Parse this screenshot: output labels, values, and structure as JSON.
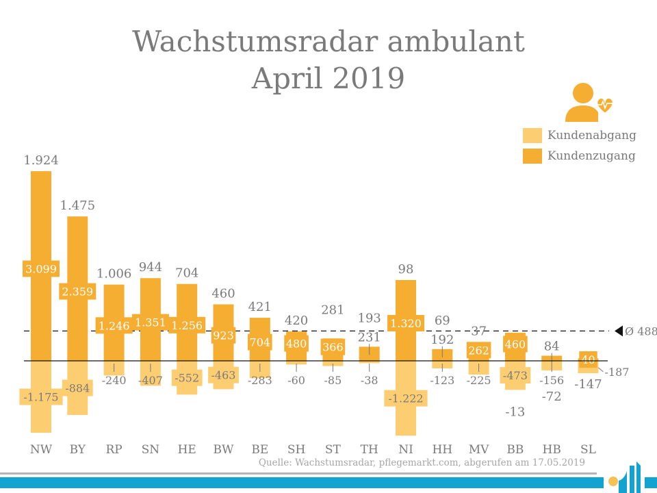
{
  "header": {
    "title_line1": "Wachstumsradar ambulant",
    "title_line2": "April 2019"
  },
  "legend": {
    "items": [
      {
        "label": "Kundenabgang",
        "color": "#fdcd72"
      },
      {
        "label": "Kundenzugang",
        "color": "#f5ae32"
      }
    ],
    "icon": "person-heart-pulse-icon"
  },
  "footer": {
    "source": "Quelle: Wachstumsradar, pflegemarkt.com, abgerufen am 17.05.2019",
    "logo": "pflegemarkt-logo",
    "band_color": "#12a3d0"
  },
  "chart_data": {
    "type": "bar",
    "title": "Wachstumsradar ambulant April 2019",
    "xlabel": "",
    "ylabel": "",
    "categories": [
      "NW",
      "BY",
      "RP",
      "SN",
      "HE",
      "BW",
      "BE",
      "SH",
      "ST",
      "TH",
      "NI",
      "HH",
      "MV",
      "BB",
      "HB",
      "SL"
    ],
    "series": [
      {
        "name": "Kundenzugang",
        "color": "#f5ae32",
        "values": [
          3099,
          2359,
          1246,
          1351,
          1256,
          923,
          704,
          480,
          366,
          231,
          1320,
          192,
          262,
          460,
          84,
          40
        ],
        "labels": [
          "3.099",
          "2.359",
          "1.246",
          "1.351",
          "1.256",
          "923",
          "704",
          "480",
          "366",
          "231",
          "1.320",
          "192",
          "262",
          "460",
          "84",
          "40"
        ]
      },
      {
        "name": "Kundenabgang",
        "color": "#fdcd72",
        "values": [
          -1175,
          -884,
          -240,
          -407,
          -552,
          -463,
          -283,
          -60,
          -85,
          -38,
          -1222,
          -123,
          -225,
          -473,
          -156,
          -187
        ],
        "labels": [
          "-1.175",
          "-884",
          "-240",
          "-407",
          "-552",
          "-463",
          "-283",
          "-60",
          "-85",
          "-38",
          "-1.222",
          "-123",
          "-225",
          "-473",
          "-156",
          "-187"
        ]
      },
      {
        "name": "Saldo",
        "values": [
          1924,
          1475,
          1006,
          944,
          704,
          460,
          421,
          420,
          281,
          193,
          98,
          69,
          37,
          -13,
          -72,
          -147
        ],
        "labels": [
          "1.924",
          "1.475",
          "1.006",
          "944",
          "704",
          "460",
          "421",
          "420",
          "281",
          "193",
          "98",
          "69",
          "37",
          "-13",
          "-72",
          "-147"
        ]
      }
    ],
    "average": {
      "value": 488,
      "label": "Ø 488"
    },
    "ylim": [
      -1300,
      3200
    ],
    "grid": false,
    "legend_position": "top-right"
  }
}
